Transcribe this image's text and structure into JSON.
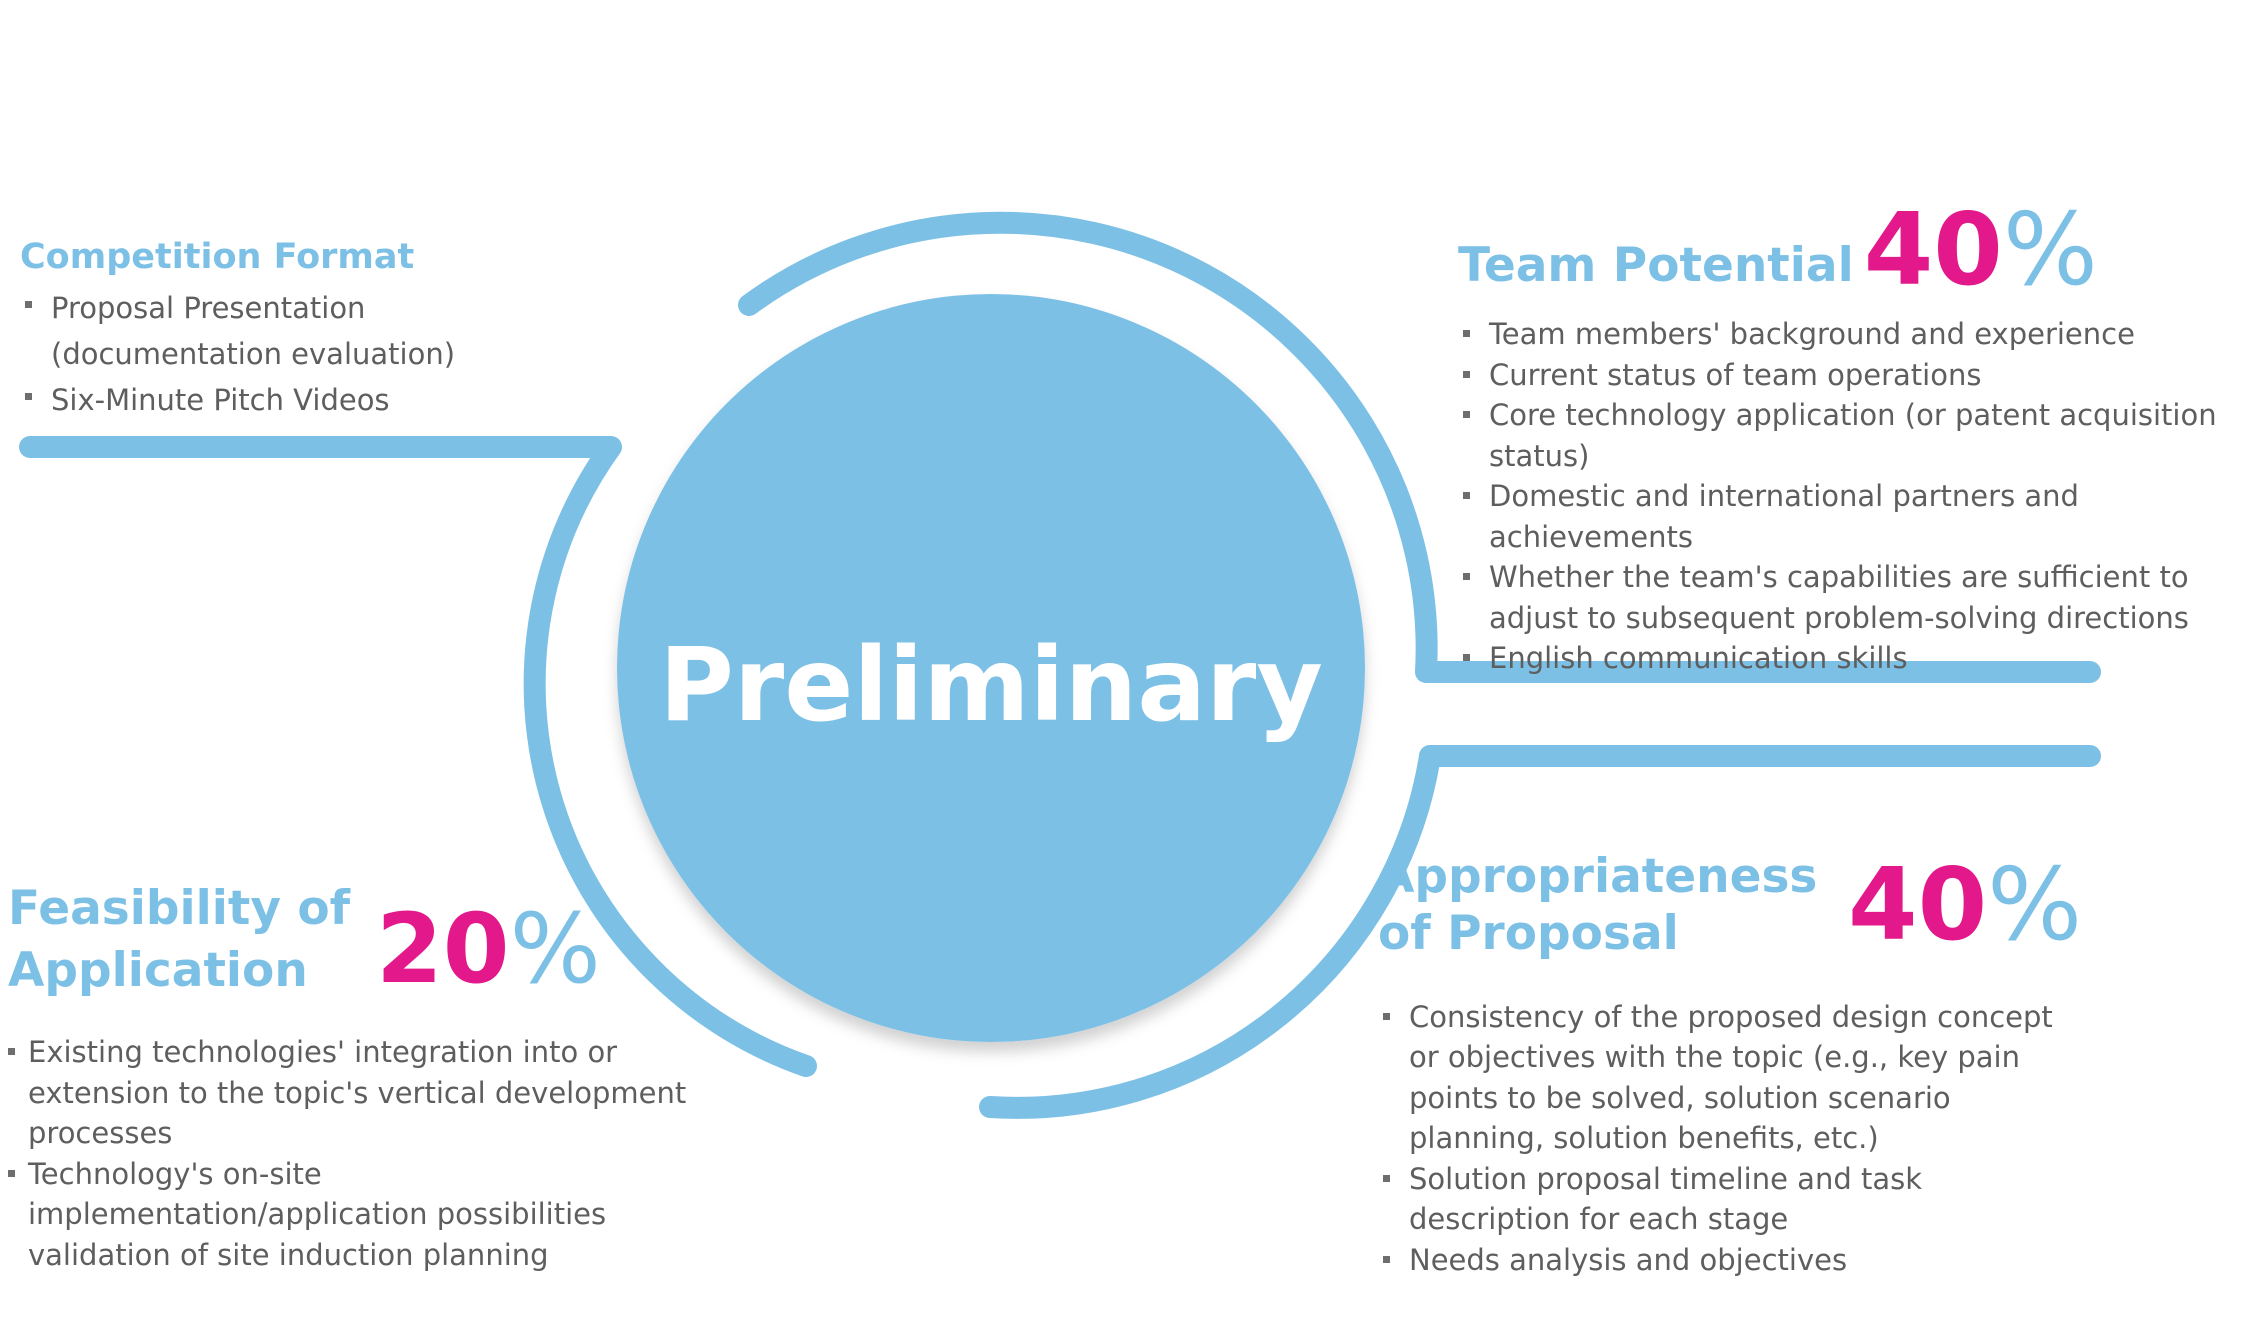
{
  "center": {
    "title": "Preliminary"
  },
  "competition_format": {
    "heading": "Competition Format",
    "items": [
      "Proposal Presentation (documentation evaluation)",
      "Six-Minute Pitch Videos"
    ]
  },
  "team_potential": {
    "heading": "Team Potential",
    "percent_number": "40",
    "percent_sign": "%",
    "items": [
      "Team members' background and experience",
      "Current status of team operations",
      "Core technology application (or patent acquisition status)",
      "Domestic and international partners and achievements",
      "Whether the team's capabilities are sufficient to adjust to subsequent problem-solving directions",
      "English communication skills"
    ]
  },
  "appropriateness": {
    "heading": "Appropriateness of Proposal",
    "percent_number": "40",
    "percent_sign": "%",
    "items": [
      "Consistency of the proposed design concept or objectives with the topic (e.g., key pain points to be solved, solution scenario planning, solution benefits, etc.)",
      "Solution proposal timeline and task description for each stage",
      "Needs analysis and objectives"
    ]
  },
  "feasibility": {
    "heading": "Feasibility of Application",
    "percent_number": "20",
    "percent_sign": "%",
    "items": [
      "Existing technologies' integration into or extension to the topic's vertical development processes",
      "Technology's on-site implementation/application possibilities validation of site induction planning"
    ]
  },
  "colors": {
    "accent_blue": "#7dc0e6",
    "accent_magenta": "#e3198b",
    "body_text": "#5e5e5e"
  }
}
